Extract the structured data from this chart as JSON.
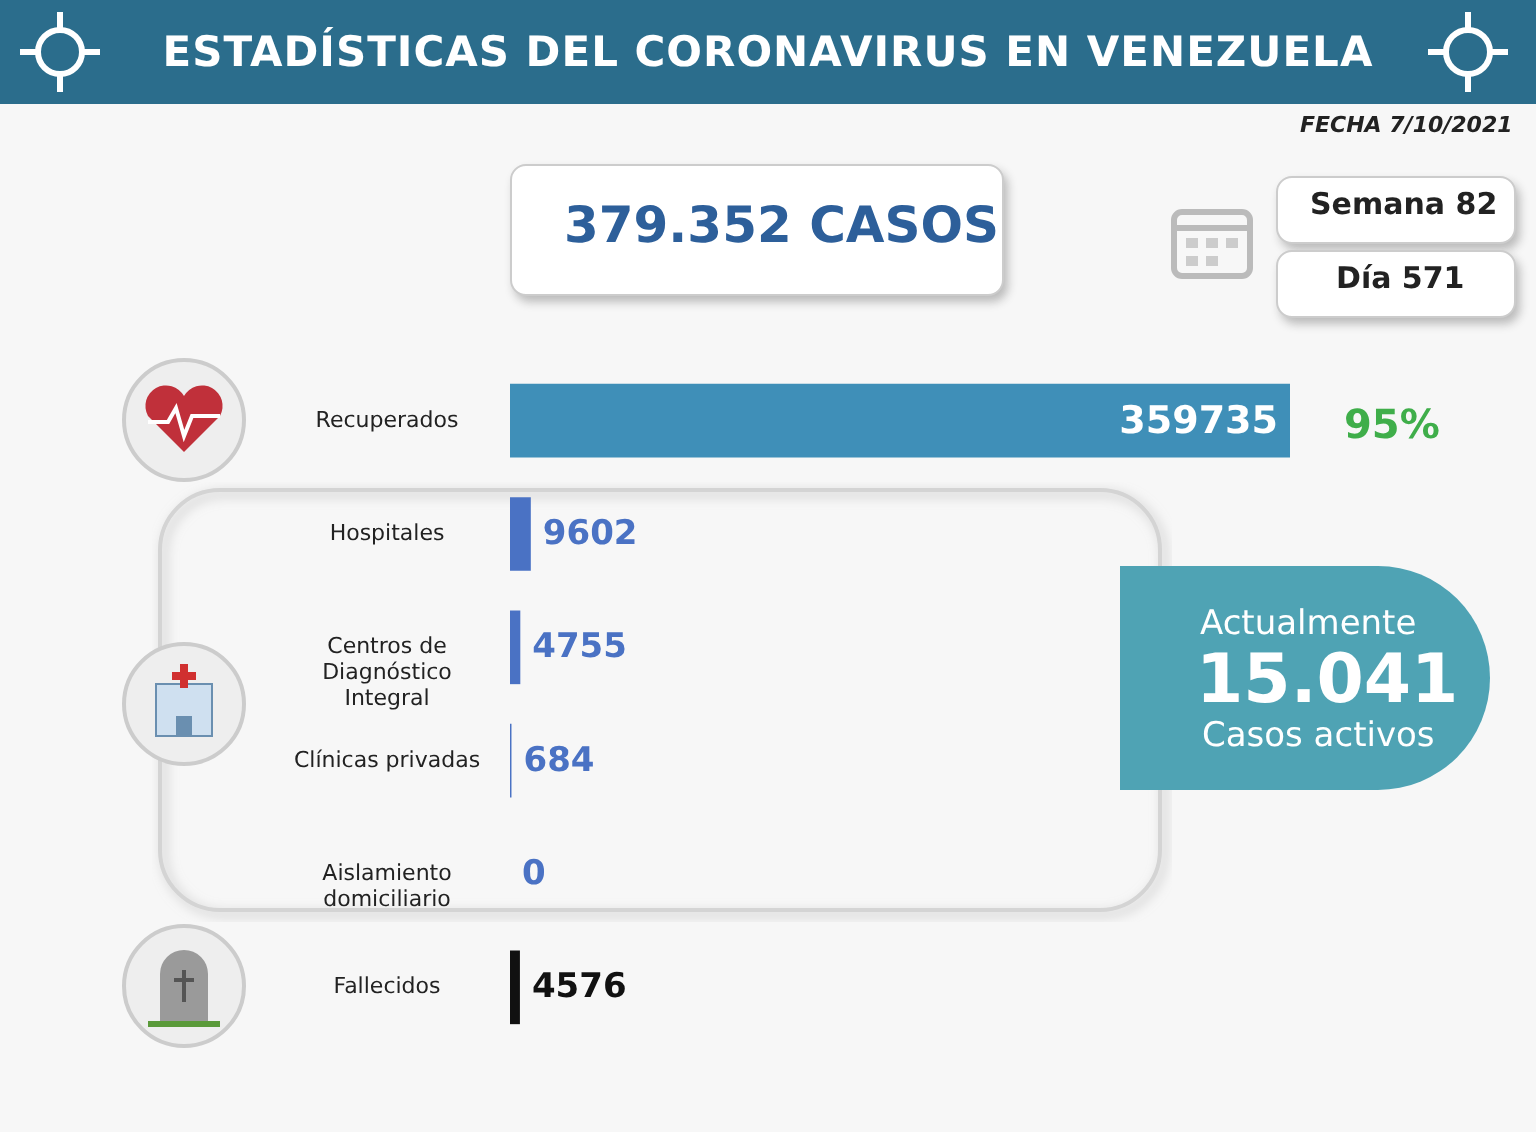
{
  "chart_data": {
    "type": "bar",
    "orientation": "horizontal",
    "title": "ESTADÍSTICAS DEL CORONAVIRUS EN VENEZUELA",
    "categories": [
      "Recuperados",
      "Hospitales",
      "Centros de Diagnóstico Integral",
      "Clínicas privadas",
      "Aislamiento domiciliario",
      "Fallecidos"
    ],
    "values": [
      359735,
      9602,
      4755,
      684,
      0,
      4576
    ],
    "colors": [
      "#3f8fb8",
      "#4a72c4",
      "#4a72c4",
      "#4a72c4",
      "#4a72c4",
      "#111111"
    ],
    "data_labels": true,
    "annotations": [
      "FECHA 7/10/2021",
      "379.352 CASOS",
      "Semana 82",
      "Día 571",
      "95%",
      "Actualmente",
      "15.041",
      "Casos activos"
    ]
  }
}
